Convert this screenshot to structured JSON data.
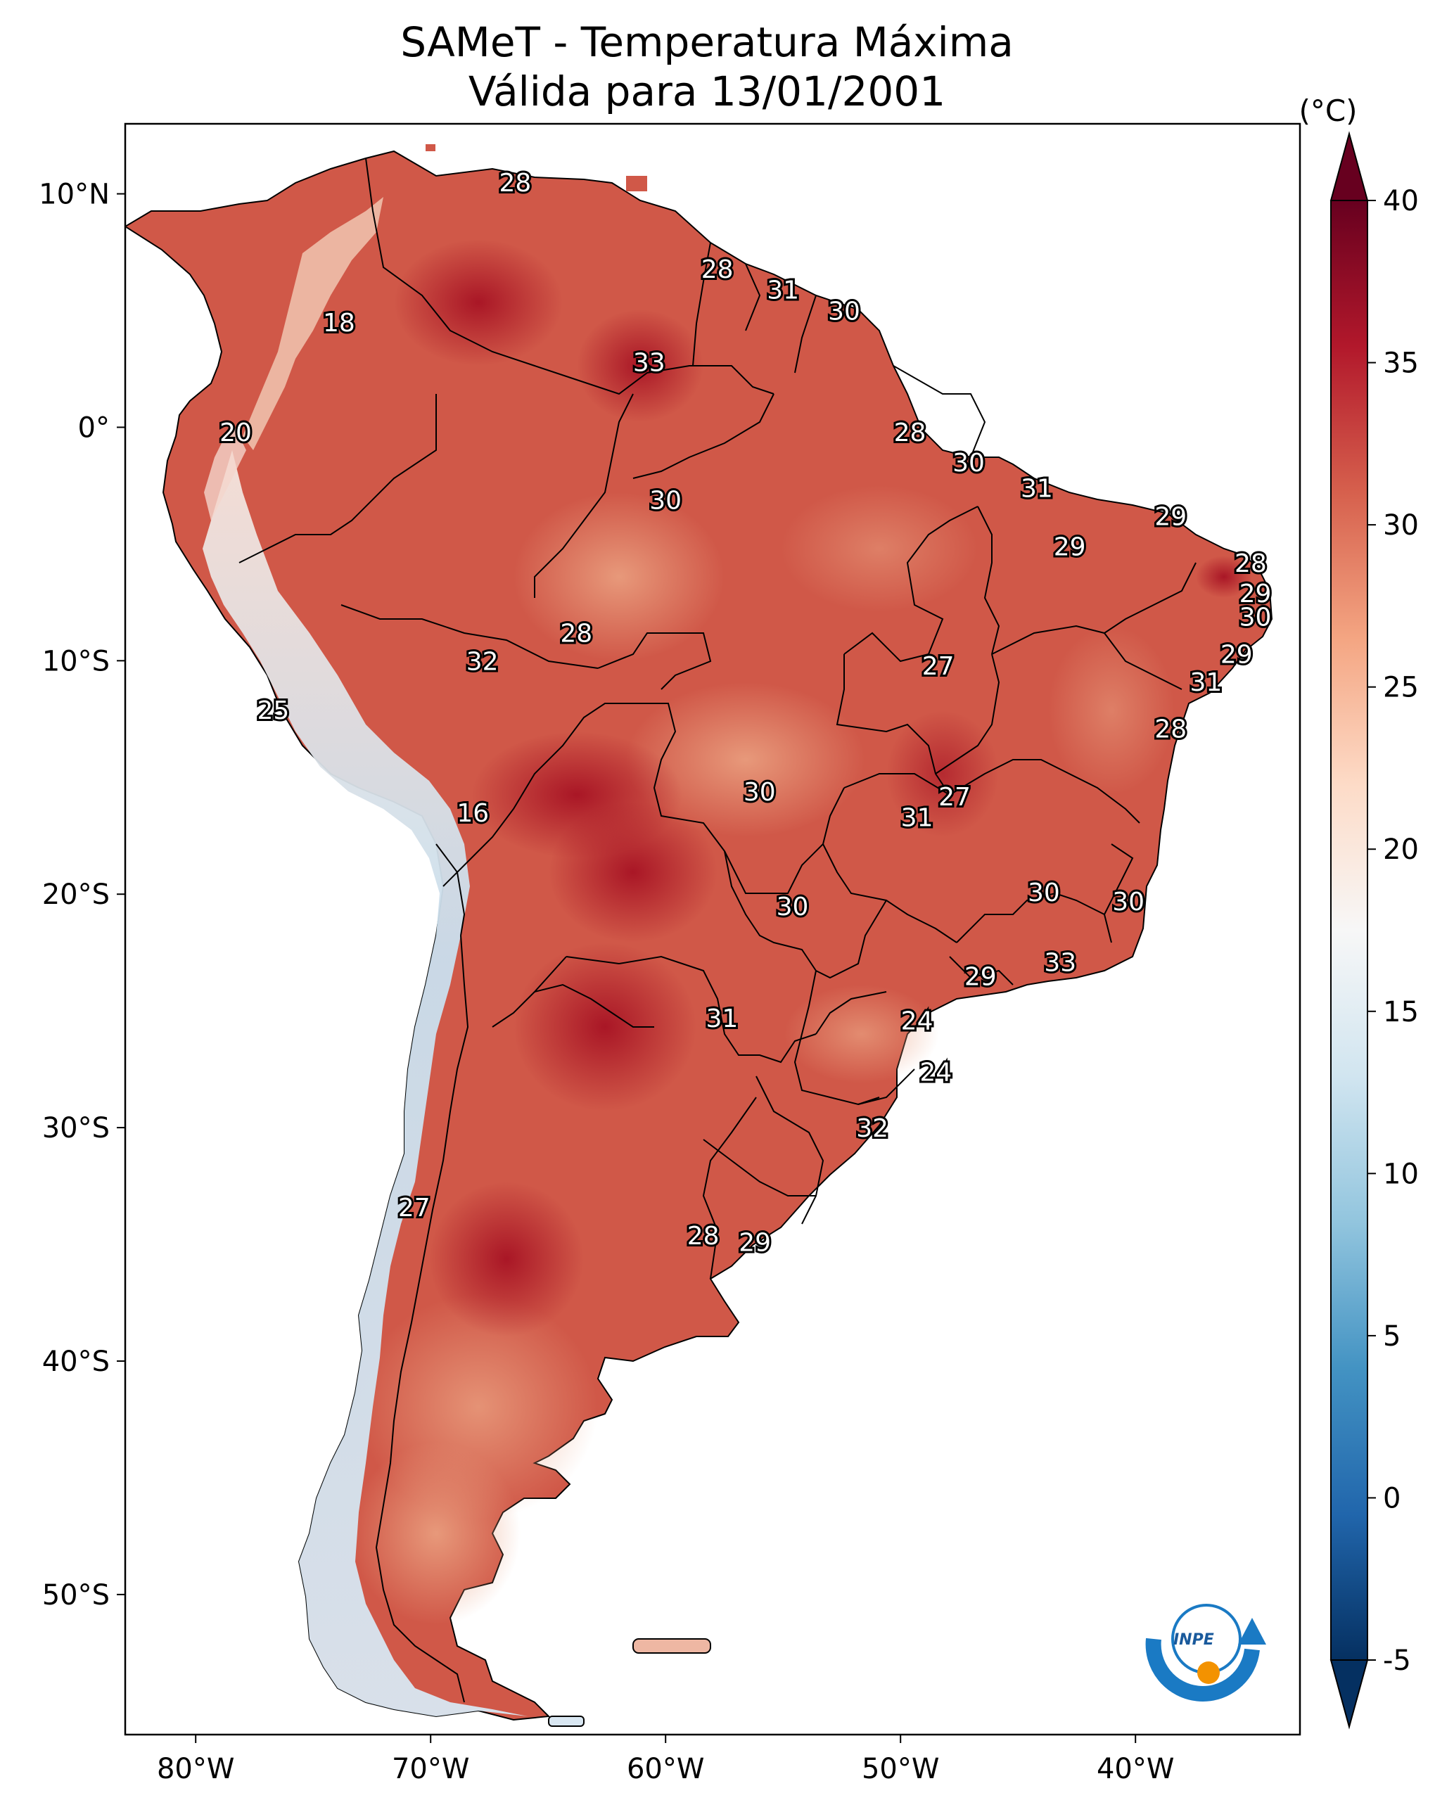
{
  "title": {
    "line1": "SAMeT - Temperatura Máxima",
    "line2": "Válida para 13/01/2001"
  },
  "map": {
    "lon_range": [
      -83,
      -33
    ],
    "lat_range": [
      -56,
      13
    ],
    "lon_ticks": [
      "80°W",
      "70°W",
      "60°W",
      "50°W",
      "40°W"
    ],
    "lat_ticks": [
      "10°N",
      "0°",
      "10°S",
      "20°S",
      "30°S",
      "40°S",
      "50°S"
    ],
    "station_labels": [
      {
        "text": "28",
        "lon": -66.4,
        "lat": 10.5
      },
      {
        "text": "18",
        "lon": -73.9,
        "lat": 4.5
      },
      {
        "text": "20",
        "lon": -78.3,
        "lat": -0.2
      },
      {
        "text": "28",
        "lon": -57.8,
        "lat": 6.8
      },
      {
        "text": "31",
        "lon": -55.0,
        "lat": 5.9
      },
      {
        "text": "30",
        "lon": -52.4,
        "lat": 5.0
      },
      {
        "text": "33",
        "lon": -60.7,
        "lat": 2.8
      },
      {
        "text": "28",
        "lon": -49.6,
        "lat": -0.2
      },
      {
        "text": "30",
        "lon": -47.1,
        "lat": -1.5
      },
      {
        "text": "30",
        "lon": -60.0,
        "lat": -3.1
      },
      {
        "text": "31",
        "lon": -44.2,
        "lat": -2.6
      },
      {
        "text": "29",
        "lon": -38.5,
        "lat": -3.8
      },
      {
        "text": "29",
        "lon": -42.8,
        "lat": -5.1
      },
      {
        "text": "28",
        "lon": -35.1,
        "lat": -5.8
      },
      {
        "text": "29",
        "lon": -34.9,
        "lat": -7.1
      },
      {
        "text": "30",
        "lon": -34.9,
        "lat": -8.1
      },
      {
        "text": "29",
        "lon": -35.7,
        "lat": -9.7
      },
      {
        "text": "31",
        "lon": -37.0,
        "lat": -10.9
      },
      {
        "text": "28",
        "lon": -63.8,
        "lat": -8.8
      },
      {
        "text": "32",
        "lon": -67.8,
        "lat": -10.0
      },
      {
        "text": "27",
        "lon": -48.4,
        "lat": -10.2
      },
      {
        "text": "25",
        "lon": -76.7,
        "lat": -12.1
      },
      {
        "text": "28",
        "lon": -38.5,
        "lat": -12.9
      },
      {
        "text": "30",
        "lon": -56.0,
        "lat": -15.6
      },
      {
        "text": "27",
        "lon": -47.7,
        "lat": -15.8
      },
      {
        "text": "31",
        "lon": -49.3,
        "lat": -16.7
      },
      {
        "text": "16",
        "lon": -68.2,
        "lat": -16.5
      },
      {
        "text": "30",
        "lon": -43.9,
        "lat": -19.9
      },
      {
        "text": "30",
        "lon": -40.3,
        "lat": -20.3
      },
      {
        "text": "30",
        "lon": -54.6,
        "lat": -20.5
      },
      {
        "text": "33",
        "lon": -43.2,
        "lat": -22.9
      },
      {
        "text": "29",
        "lon": -46.6,
        "lat": -23.5
      },
      {
        "text": "31",
        "lon": -57.6,
        "lat": -25.3
      },
      {
        "text": "24",
        "lon": -49.3,
        "lat": -25.4
      },
      {
        "text": "24",
        "lon": -48.5,
        "lat": -27.6
      },
      {
        "text": "32",
        "lon": -51.2,
        "lat": -30.0
      },
      {
        "text": "27",
        "lon": -70.7,
        "lat": -33.4
      },
      {
        "text": "28",
        "lon": -58.4,
        "lat": -34.6
      },
      {
        "text": "29",
        "lon": -56.2,
        "lat": -34.9
      }
    ]
  },
  "colorbar": {
    "unit": "(°C)",
    "min": -5,
    "max": 40,
    "ticks": [
      "40",
      "35",
      "30",
      "25",
      "20",
      "15",
      "10",
      "5",
      "0",
      "-5"
    ],
    "colors": [
      "#053061",
      "#2166ac",
      "#4393c3",
      "#92c5de",
      "#d1e5f0",
      "#f7f7f7",
      "#fddbc7",
      "#f4a582",
      "#d6604d",
      "#b2182b",
      "#67001f"
    ]
  },
  "logo": {
    "text": "INPE",
    "colors": {
      "blue": "#1a7ac4",
      "orange": "#f39200"
    }
  }
}
